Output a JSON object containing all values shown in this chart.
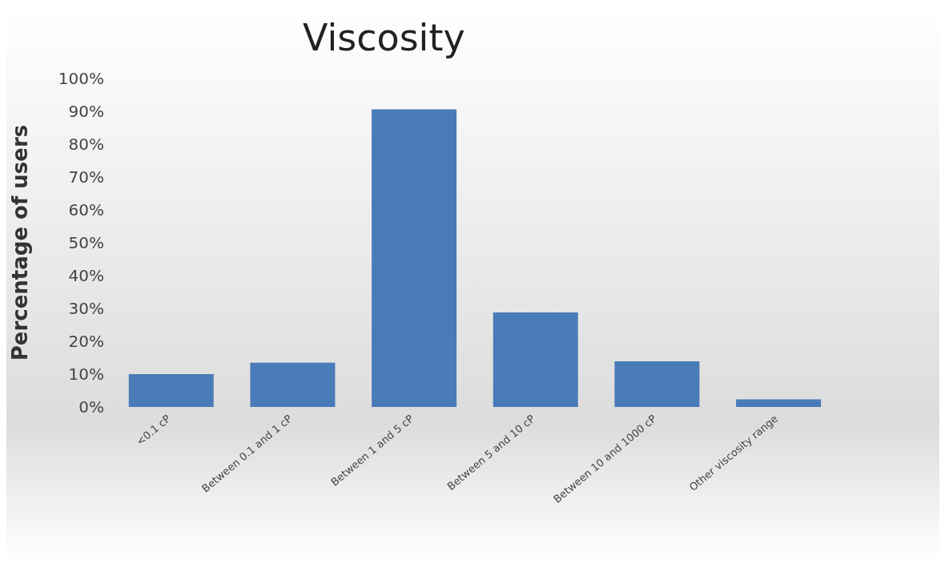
{
  "chart_data": {
    "type": "bar",
    "title": "Viscosity",
    "ylabel": "Percentage of users",
    "categories": [
      "<0.1 cP",
      "Between 0.1 and 1 cP",
      "Between 1 and 5 cP",
      "Between 5 and 10 cP",
      "Between 10 and 1000 cP",
      "Other viscosity range"
    ],
    "values": [
      10,
      13.5,
      90.6,
      28.8,
      13.9,
      2.3
    ],
    "color": "#4a7bb9",
    "ylim": [
      0,
      100
    ],
    "yticks": [
      {
        "value": 0,
        "label": "0%"
      },
      {
        "value": 10,
        "label": "10%"
      },
      {
        "value": 20,
        "label": "20%"
      },
      {
        "value": 30,
        "label": "30%"
      },
      {
        "value": 40,
        "label": "40%"
      },
      {
        "value": 50,
        "label": "50%"
      },
      {
        "value": 60,
        "label": "60%"
      },
      {
        "value": 70,
        "label": "70%"
      },
      {
        "value": 80,
        "label": "80%"
      },
      {
        "value": 90,
        "label": "90%"
      },
      {
        "value": 100,
        "label": "100%"
      }
    ],
    "grid": false,
    "legend": false
  }
}
